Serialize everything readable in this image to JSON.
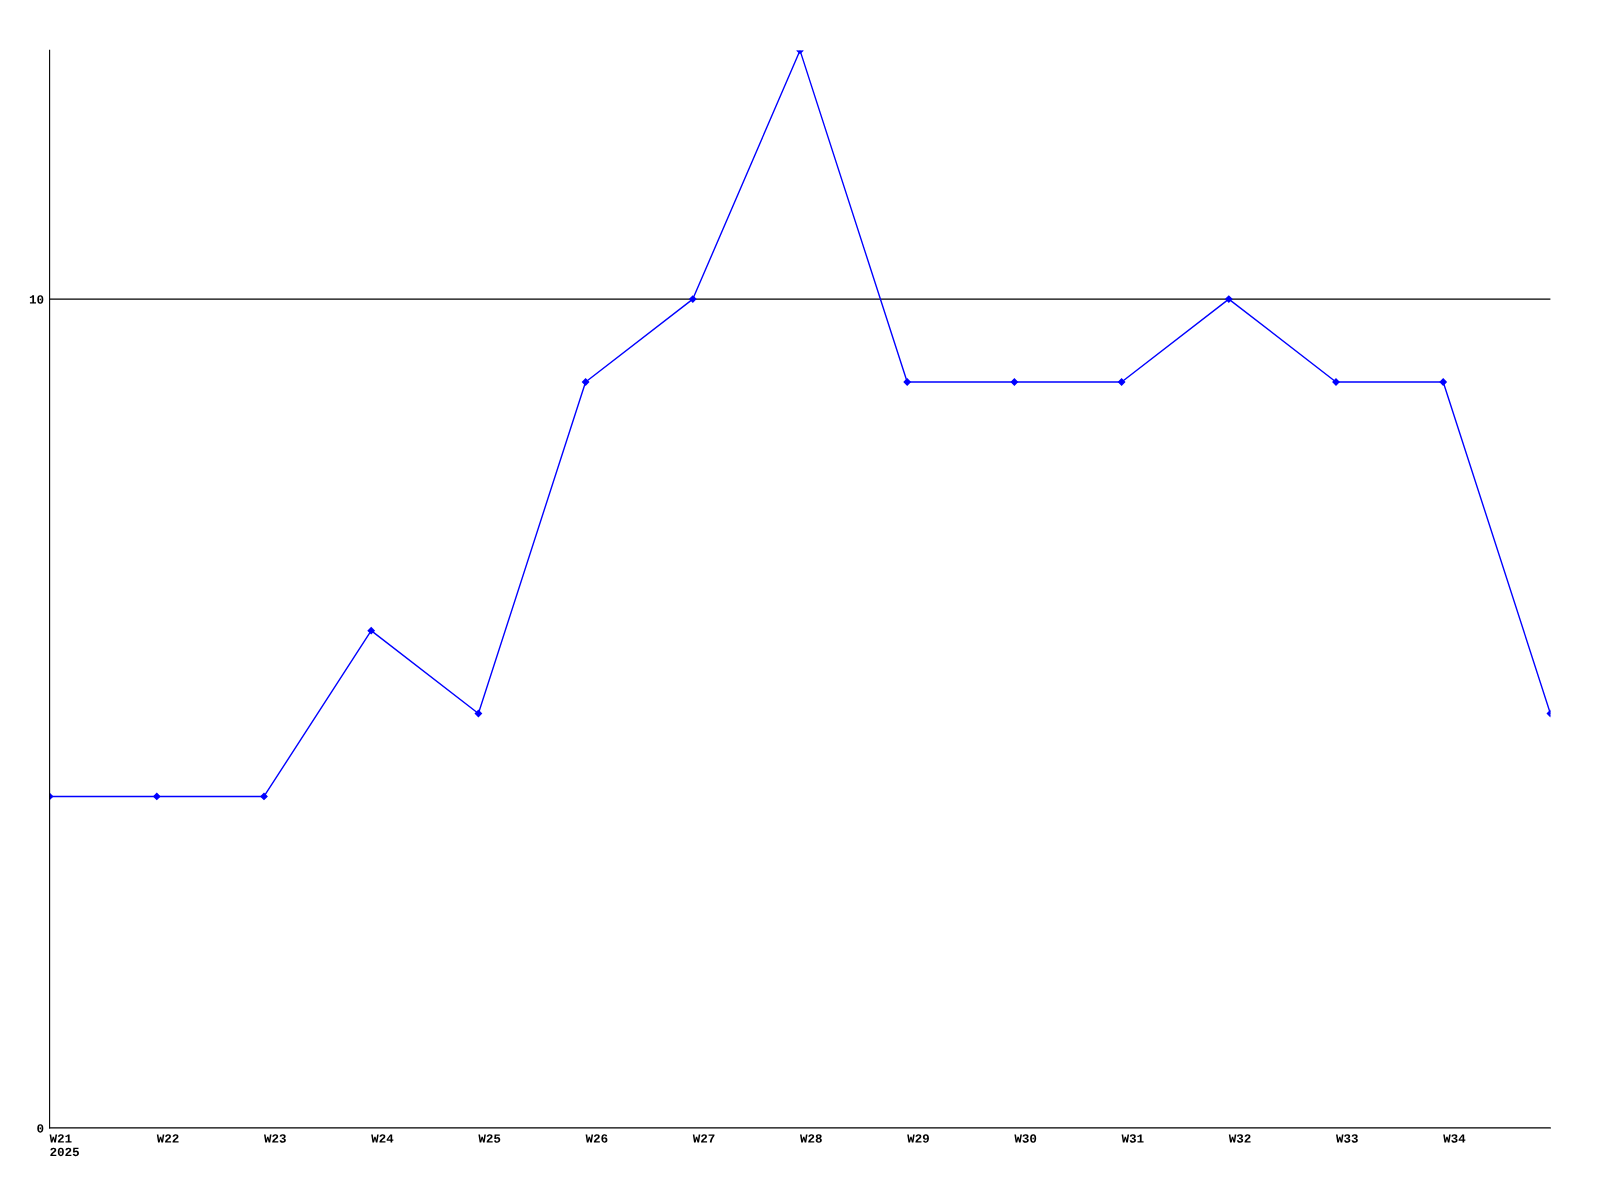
{
  "chart_data": {
    "type": "line",
    "categories": [
      "W21\n2025",
      "W22",
      "W23",
      "W24",
      "W25",
      "W26",
      "W27",
      "W28",
      "W29",
      "W30",
      "W31",
      "W32",
      "W33",
      "W34",
      null
    ],
    "series": [
      {
        "color": "#0000ff",
        "values": [
          4,
          4,
          4,
          6,
          5,
          9,
          10,
          13,
          9,
          9,
          9,
          10,
          9,
          9,
          5
        ]
      }
    ],
    "ylim": [
      0,
      13
    ],
    "yticks": [
      0,
      10
    ],
    "grid": "y",
    "marker": "diamond",
    "line_style": "solid"
  }
}
